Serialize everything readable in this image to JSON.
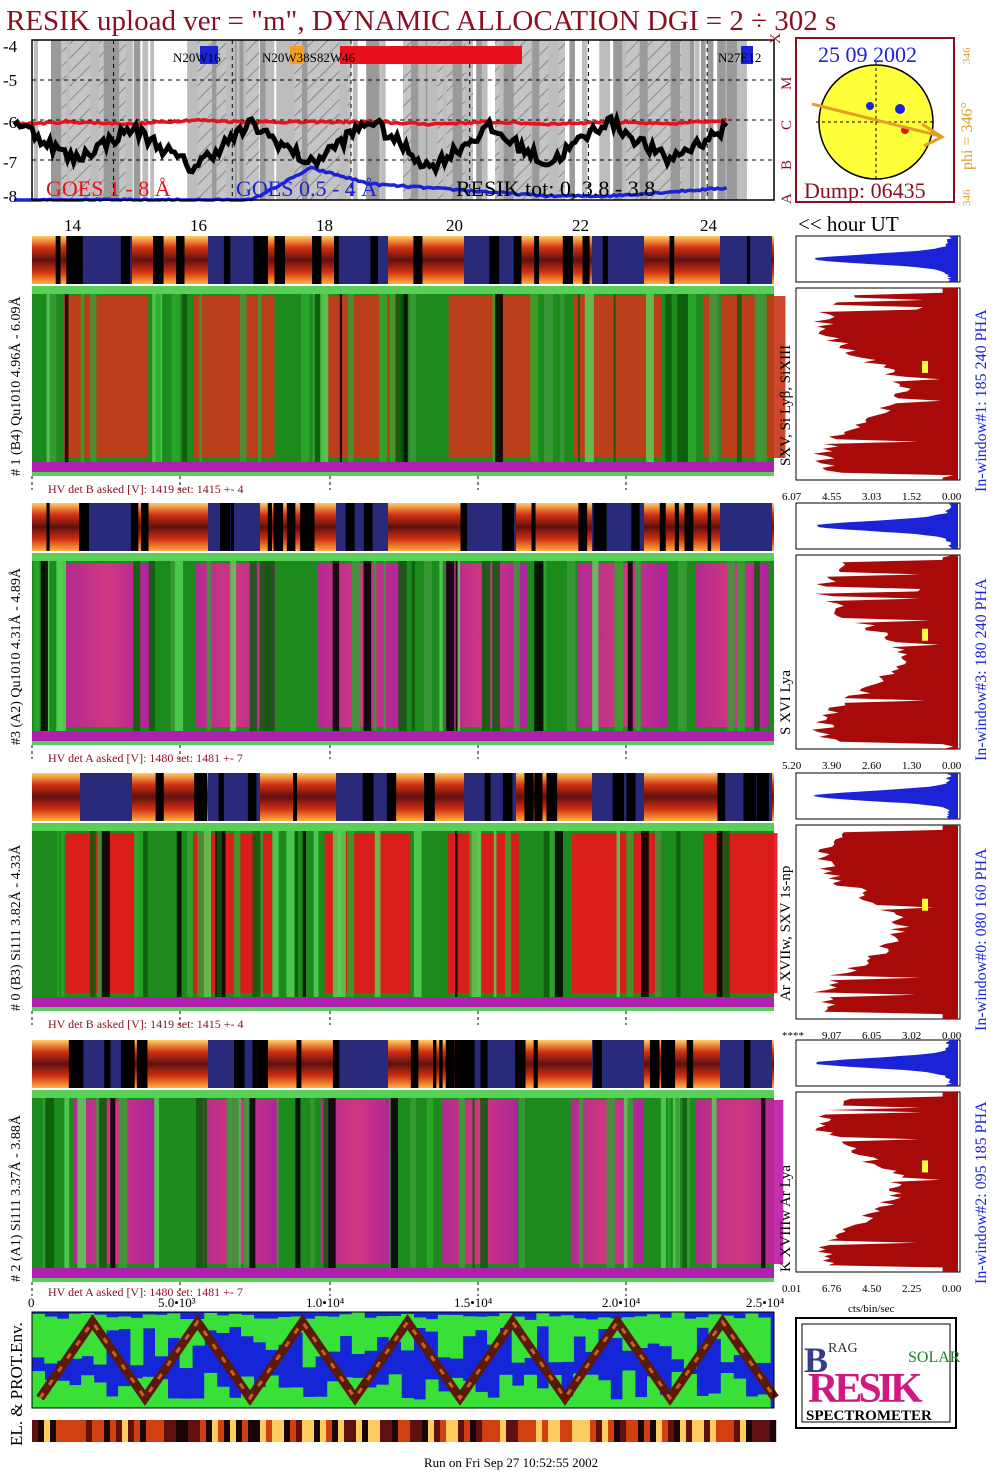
{
  "header": {
    "title": "RESIK upload ver = \"m\", DYNAMIC ALLOCATION  DGI =   2 ÷ 302 s",
    "footer": "Run on Fri Sep 27 10:52:55 2002"
  },
  "goes_panel": {
    "y_ticks": [
      "-4",
      "-5",
      "-6",
      "-7",
      "-8"
    ],
    "class_letters": [
      "X",
      "M",
      "C",
      "B",
      "A"
    ],
    "x_ticks": [
      "14",
      "16",
      "18",
      "20",
      "22",
      "24"
    ],
    "x_axis_label": "<< hour UT",
    "legend_goes_long": "GOES 1 - 8 Å",
    "legend_goes_short": "GOES 0.5 - 4 Å",
    "legend_resik": "RESIK tot: 0, 3.8 - 3.8",
    "regions": [
      "N20W16",
      "N20W38S82W46",
      "N27E12"
    ],
    "colors": {
      "long": "#e8101a",
      "short": "#1a24d6",
      "resik": "#000000"
    }
  },
  "sun_panel": {
    "date": "25 09 2002",
    "phi_label": "phi = 346°",
    "phi_small": "346",
    "dump": "Dump: 06435"
  },
  "detectors": [
    {
      "left_label": "# 1 (B4) Qu1010 4.96Å - 6.09Å",
      "line_label": "SXV, Si Lyβ, SiXIII",
      "right_label": "In-window#1:  185 240 PHA",
      "hv_label": "HV det B asked [V]:  1419 set:  1415  +-    4",
      "x_ticks": [
        "6.07",
        "4.55",
        "3.03",
        "1.52",
        "0.00"
      ]
    },
    {
      "left_label": "#3 (A2) Qu1010  4.31Å - 4.89Å",
      "line_label": "S XVI Lya",
      "right_label": "In-window#3:  180 240 PHA",
      "hv_label": "HV det A asked [V]:  1480 set:  1481  +-    7",
      "x_ticks": [
        "5.20",
        "3.90",
        "2.60",
        "1.30",
        "0.00"
      ]
    },
    {
      "left_label": "# 0 (B3) Si111  3.82Å - 4.33Å",
      "line_label": "Ar XVIIw,  SXV 1s-np",
      "right_label": "In-window#0:  080 160 PHA",
      "hv_label": "HV det B asked [V]:  1419 set:  1415  +-    4",
      "x_ticks": [
        "****",
        "9.07",
        "6.05",
        "3.02",
        "0.00"
      ]
    },
    {
      "left_label": "# 2 (A1) Si111  3.37Å - 3.88Å",
      "line_label": "K XVIIIw  Ar Lya",
      "right_label": "In-window#2:  095 185 PHA",
      "hv_label": "HV det A asked [V]:  1480 set:  1481  +-    7",
      "x_ticks": [
        "0.01",
        "6.76",
        "4.50",
        "2.25",
        "0.00"
      ]
    }
  ],
  "spectra_x_label": "cts/bin/sec",
  "env_panel": {
    "label": "EL. & PROT.Env.",
    "x_ticks": [
      "0",
      "5.0•10³",
      "1.0•10⁴",
      "1.5•10⁴",
      "2.0•10⁴",
      "2.5•10⁴"
    ]
  },
  "logo": {
    "letters": [
      "B",
      "RAG",
      "RESIK",
      "SOLAR"
    ],
    "name": "SPECTROMETER"
  },
  "chart_data": [
    {
      "type": "line",
      "title": "",
      "xlabel": "<< hour UT",
      "ylabel": "",
      "x": [
        13,
        14,
        15,
        16,
        17,
        18,
        19,
        20,
        21,
        22,
        23,
        24,
        25
      ],
      "xlim": [
        13.3,
        25.8
      ],
      "ylim": [
        -8,
        -4
      ],
      "series": [
        {
          "name": "GOES 1 - 8 Å",
          "values": [
            -6.1,
            -6.05,
            -6.1,
            -6.0,
            -6.05,
            -6.05,
            -6.05,
            -6.1,
            -6.05,
            -6.1,
            -6.05,
            -6.1,
            -6.0
          ]
        },
        {
          "name": "GOES 0.5 - 4 Å",
          "values": [
            -8.0,
            -8.0,
            -8.0,
            -8.0,
            -8.0,
            -7.2,
            -7.6,
            -7.7,
            -7.8,
            -7.9,
            -7.9,
            -7.8,
            -7.7
          ]
        },
        {
          "name": "RESIK tot: 0, 3.8 - 3.8",
          "values": [
            -6.0,
            -7.0,
            -6.2,
            -7.2,
            -6.1,
            -7.1,
            -6.0,
            -7.2,
            -6.2,
            -7.1,
            -6.0,
            -7.0,
            -6.2
          ]
        }
      ]
    }
  ]
}
